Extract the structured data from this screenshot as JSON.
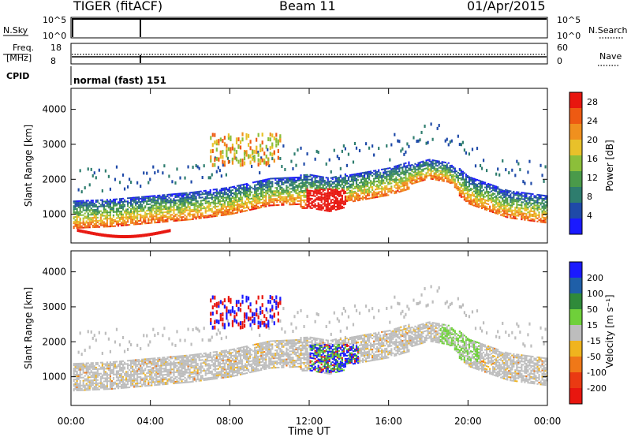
{
  "header": {
    "station": "TIGER (fitACF)",
    "beam": "Beam 11",
    "date": "01/Apr/2015"
  },
  "top_panels": {
    "nsky_label": "N.Sky",
    "nsky_ticks": [
      "10^5",
      "10^0"
    ],
    "nsearch_label": "N.Search",
    "nsearch_ticks": [
      "10^5",
      "10^0"
    ],
    "freq_label_1": "Freq.",
    "freq_label_2": "[MHz]",
    "freq_ticks": [
      "18",
      "8"
    ],
    "nave_label": "Nave",
    "nave_ticks": [
      "60",
      "0"
    ],
    "cpid_label": "CPID",
    "cpid_value": "normal (fast) 151"
  },
  "colors": {
    "power_scale": [
      "#1a1aff",
      "#1f4aa8",
      "#2e7d6e",
      "#4a9a4a",
      "#8cbf3a",
      "#e8c12a",
      "#f0901e",
      "#ee5a12",
      "#e8160f"
    ],
    "velocity_scale": [
      "#1a1aff",
      "#1f5fa8",
      "#2f8a3a",
      "#6fd03a",
      "#bdbdbd",
      "#f0b41e",
      "#f07818",
      "#ea3a12",
      "#e8160f"
    ]
  },
  "chart_data": [
    {
      "type": "heatmap",
      "name": "power",
      "x": [
        "00:00",
        "04:00",
        "08:00",
        "12:00",
        "16:00",
        "20:00",
        "00:00"
      ],
      "xlabel": "",
      "ylabel": "Slant Range [km]",
      "yticks": [
        1000,
        2000,
        3000,
        4000
      ],
      "ylim": [
        180,
        4600
      ],
      "xlim_hours": [
        0,
        24
      ],
      "colorbar_label": "Power [dB]",
      "colorbar_ticks": [
        4,
        8,
        12,
        16,
        20,
        24,
        28
      ],
      "colorbar_range": [
        0,
        30
      ]
    },
    {
      "type": "heatmap",
      "name": "velocity",
      "x": [
        "00:00",
        "04:00",
        "08:00",
        "12:00",
        "16:00",
        "20:00",
        "00:00"
      ],
      "xlabel": "Time UT",
      "ylabel": "Slant Range [km]",
      "yticks": [
        1000,
        2000,
        3000,
        4000
      ],
      "ylim": [
        180,
        4600
      ],
      "xlim_hours": [
        0,
        24
      ],
      "colorbar_label": "Velocity [m s⁻¹]",
      "colorbar_ticks": [
        200,
        100,
        50,
        15,
        -15,
        -50,
        -100,
        -200
      ]
    }
  ]
}
